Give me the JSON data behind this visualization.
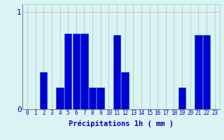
{
  "values": [
    0,
    0,
    0.38,
    0,
    0.22,
    0.78,
    0.78,
    0.78,
    0.22,
    0.22,
    0,
    0.76,
    0.38,
    0,
    0,
    0,
    0,
    0,
    0,
    0.22,
    0,
    0.76,
    0.76,
    0
  ],
  "bar_color": "#0000cc",
  "bar_edge_color": "#0044ff",
  "xlabel": "Précipitations 1h ( mm )",
  "ylim": [
    0,
    1.08
  ],
  "yticks": [
    0,
    1
  ],
  "ytick_labels": [
    "0",
    "1"
  ],
  "xlim": [
    -0.6,
    23.6
  ],
  "background_color": "#daf4f4",
  "hgrid_color": "#e8b8b8",
  "vgrid_color": "#b8d4d4",
  "label_color": "#0000cc",
  "xlabel_fontsize": 7.5,
  "ytick_fontsize": 8,
  "xtick_fontsize": 5.5
}
